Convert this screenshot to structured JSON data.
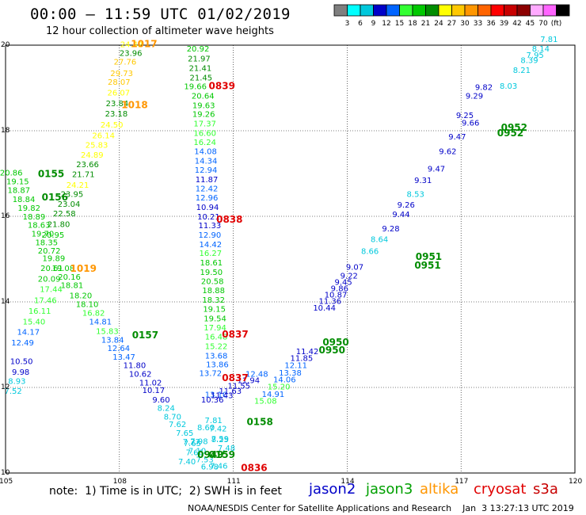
{
  "header": {
    "title": "00:00 – 11:59 UTC 01/02/2019",
    "subtitle": "12 hour collection of altimeter wave heights"
  },
  "legend": {
    "colors": [
      "#7f7f7f",
      "#00ffff",
      "#00c8dc",
      "#0000c8",
      "#0064ff",
      "#32ff32",
      "#00c800",
      "#008c00",
      "#ffff00",
      "#ffc800",
      "#ff9600",
      "#ff6400",
      "#ff0000",
      "#c80000",
      "#8c0000",
      "#ffaaff",
      "#ff64ff",
      "#000000"
    ],
    "labels": [
      "3",
      "6",
      "9",
      "12",
      "15",
      "18",
      "21",
      "24",
      "27",
      "30",
      "33",
      "36",
      "39",
      "42",
      "45",
      "70",
      "(ft)"
    ]
  },
  "map": {
    "lon_range": [
      105,
      120
    ],
    "lat_range": [
      10,
      20
    ],
    "lon_ticks": [
      "105",
      "108",
      "111",
      "114",
      "117",
      "120"
    ],
    "lat_ticks": [
      "10",
      "12",
      "14",
      "16",
      "18",
      "20"
    ]
  },
  "footer": {
    "note": "note:  1) Time is in UTC;  2) SWH is in feet",
    "credit": "NOAA/NESDIS Center for Satellite Applications and Research    Jan  3 13:27:13 UTC 2019",
    "satellites": [
      {
        "name": "jason2",
        "color": "#0000c8"
      },
      {
        "name": "jason3",
        "color": "#00a000"
      },
      {
        "name": "altika",
        "color": "#ff9600"
      },
      {
        "name": "cryosat",
        "color": "#e00000"
      },
      {
        "name": "s3a",
        "color": "#c80000"
      }
    ]
  },
  "tracks": [
    {
      "id": "altika-1017",
      "labels": [
        {
          "t": "24.42",
          "lon": 108.32,
          "lat": 19.95
        },
        {
          "t": "23.96",
          "lon": 108.3,
          "lat": 19.75
        },
        {
          "t": "27.76",
          "lon": 108.15,
          "lat": 19.55
        },
        {
          "t": "29.73",
          "lon": 108.06,
          "lat": 19.28
        },
        {
          "t": "28.07",
          "lon": 107.99,
          "lat": 19.07
        },
        {
          "t": "26.07",
          "lon": 107.98,
          "lat": 18.82
        },
        {
          "t": "23.84",
          "lon": 107.94,
          "lat": 18.57
        },
        {
          "t": "23.18",
          "lon": 107.92,
          "lat": 18.33
        },
        {
          "t": "24.50",
          "lon": 107.8,
          "lat": 18.07
        },
        {
          "t": "26.14",
          "lon": 107.58,
          "lat": 17.82
        },
        {
          "t": "25.83",
          "lon": 107.4,
          "lat": 17.6
        },
        {
          "t": "24.89",
          "lon": 107.28,
          "lat": 17.37
        },
        {
          "t": "23.66",
          "lon": 107.16,
          "lat": 17.15
        },
        {
          "t": "21.71",
          "lon": 107.05,
          "lat": 16.92
        },
        {
          "t": "24.21",
          "lon": 106.9,
          "lat": 16.67
        },
        {
          "t": "23.95",
          "lon": 106.75,
          "lat": 16.45
        },
        {
          "t": "23.04",
          "lon": 106.67,
          "lat": 16.22
        },
        {
          "t": "22.58",
          "lon": 106.55,
          "lat": 16.0
        },
        {
          "t": "21.80",
          "lon": 106.4,
          "lat": 15.75
        },
        {
          "t": "20.95",
          "lon": 106.25,
          "lat": 15.5
        }
      ]
    },
    {
      "id": "jason3-0155",
      "labels": [
        {
          "t": "20.86",
          "lon": 105.15,
          "lat": 16.95
        },
        {
          "t": "19.15",
          "lon": 105.32,
          "lat": 16.75
        },
        {
          "t": "18.87",
          "lon": 105.35,
          "lat": 16.55
        },
        {
          "t": "18.84",
          "lon": 105.48,
          "lat": 16.33
        },
        {
          "t": "19.82",
          "lon": 105.62,
          "lat": 16.13
        },
        {
          "t": "18.89",
          "lon": 105.75,
          "lat": 15.93
        },
        {
          "t": "18.63",
          "lon": 105.88,
          "lat": 15.73
        },
        {
          "t": "19.70",
          "lon": 105.98,
          "lat": 15.53
        },
        {
          "t": "18.35",
          "lon": 106.08,
          "lat": 15.32
        },
        {
          "t": "20.72",
          "lon": 106.15,
          "lat": 15.13
        },
        {
          "t": "19.89",
          "lon": 106.27,
          "lat": 14.95
        },
        {
          "t": "20.61",
          "lon": 106.22,
          "lat": 14.72
        },
        {
          "t": "19.08",
          "lon": 106.52,
          "lat": 14.72
        },
        {
          "t": "20.09",
          "lon": 106.15,
          "lat": 14.47
        },
        {
          "t": "20.16",
          "lon": 106.68,
          "lat": 14.52
        },
        {
          "t": "18.81",
          "lon": 106.75,
          "lat": 14.32
        },
        {
          "t": "17.44",
          "lon": 106.2,
          "lat": 14.23
        },
        {
          "t": "18.20",
          "lon": 106.98,
          "lat": 14.08
        },
        {
          "t": "17.46",
          "lon": 106.05,
          "lat": 13.97
        },
        {
          "t": "18.10",
          "lon": 107.15,
          "lat": 13.88
        },
        {
          "t": "16.11",
          "lon": 105.9,
          "lat": 13.72
        },
        {
          "t": "16.82",
          "lon": 107.32,
          "lat": 13.68
        },
        {
          "t": "15.40",
          "lon": 105.75,
          "lat": 13.47
        },
        {
          "t": "14.81",
          "lon": 107.5,
          "lat": 13.47
        },
        {
          "t": "14.17",
          "lon": 105.6,
          "lat": 13.23
        },
        {
          "t": "15.83",
          "lon": 107.68,
          "lat": 13.25
        },
        {
          "t": "12.49",
          "lon": 105.45,
          "lat": 12.98
        },
        {
          "t": "13.84",
          "lon": 107.82,
          "lat": 13.05
        },
        {
          "t": "12.64",
          "lon": 107.98,
          "lat": 12.85
        },
        {
          "t": "13.47",
          "lon": 108.12,
          "lat": 12.65
        }
      ]
    },
    {
      "id": "jason2-0157",
      "labels": [
        {
          "t": "10.50",
          "lon": 105.42,
          "lat": 12.55
        },
        {
          "t": "9.98",
          "lon": 105.4,
          "lat": 12.3
        },
        {
          "t": "8.93",
          "lon": 105.3,
          "lat": 12.08
        },
        {
          "t": "7.52",
          "lon": 105.2,
          "lat": 11.85
        },
        {
          "t": "11.80",
          "lon": 108.4,
          "lat": 12.45
        },
        {
          "t": "10.62",
          "lon": 108.55,
          "lat": 12.25
        },
        {
          "t": "11.02",
          "lon": 108.82,
          "lat": 12.05
        },
        {
          "t": "10.17",
          "lon": 108.9,
          "lat": 11.87
        },
        {
          "t": "9.60",
          "lon": 109.1,
          "lat": 11.65
        },
        {
          "t": "8.24",
          "lon": 109.23,
          "lat": 11.45
        },
        {
          "t": "8.70",
          "lon": 109.4,
          "lat": 11.25
        },
        {
          "t": "7.62",
          "lon": 109.53,
          "lat": 11.07
        },
        {
          "t": "7.65",
          "lon": 109.72,
          "lat": 10.87
        },
        {
          "t": "7.27",
          "lon": 109.9,
          "lat": 10.67
        },
        {
          "t": "7.10",
          "lon": 110.05,
          "lat": 10.45
        }
      ]
    },
    {
      "id": "jason3-0839",
      "labels": [
        {
          "t": "20.92",
          "lon": 110.07,
          "lat": 19.85
        },
        {
          "t": "21.97",
          "lon": 110.1,
          "lat": 19.62
        },
        {
          "t": "21.41",
          "lon": 110.13,
          "lat": 19.4
        },
        {
          "t": "21.45",
          "lon": 110.15,
          "lat": 19.18
        },
        {
          "t": "19.66",
          "lon": 110.0,
          "lat": 18.97
        },
        {
          "t": "20.64",
          "lon": 110.2,
          "lat": 18.75
        },
        {
          "t": "19.63",
          "lon": 110.22,
          "lat": 18.53
        },
        {
          "t": "19.26",
          "lon": 110.22,
          "lat": 18.32
        },
        {
          "t": "17.37",
          "lon": 110.25,
          "lat": 18.1
        },
        {
          "t": "16.60",
          "lon": 110.25,
          "lat": 17.88
        },
        {
          "t": "16.24",
          "lon": 110.25,
          "lat": 17.67
        },
        {
          "t": "14.08",
          "lon": 110.27,
          "lat": 17.45
        },
        {
          "t": "14.34",
          "lon": 110.28,
          "lat": 17.23
        },
        {
          "t": "12.94",
          "lon": 110.28,
          "lat": 17.02
        },
        {
          "t": "11.87",
          "lon": 110.3,
          "lat": 16.8
        },
        {
          "t": "12.42",
          "lon": 110.3,
          "lat": 16.58
        },
        {
          "t": "12.96",
          "lon": 110.3,
          "lat": 16.37
        },
        {
          "t": "10.94",
          "lon": 110.32,
          "lat": 16.15
        },
        {
          "t": "10.21",
          "lon": 110.35,
          "lat": 15.93
        },
        {
          "t": "11.33",
          "lon": 110.38,
          "lat": 15.72
        },
        {
          "t": "12.90",
          "lon": 110.38,
          "lat": 15.5
        },
        {
          "t": "14.42",
          "lon": 110.4,
          "lat": 15.28
        },
        {
          "t": "16.27",
          "lon": 110.4,
          "lat": 15.07
        },
        {
          "t": "18.61",
          "lon": 110.42,
          "lat": 14.85
        },
        {
          "t": "19.50",
          "lon": 110.42,
          "lat": 14.63
        },
        {
          "t": "20.58",
          "lon": 110.45,
          "lat": 14.42
        },
        {
          "t": "18.88",
          "lon": 110.48,
          "lat": 14.2
        },
        {
          "t": "18.32",
          "lon": 110.48,
          "lat": 13.98
        },
        {
          "t": "19.15",
          "lon": 110.5,
          "lat": 13.77
        },
        {
          "t": "19.54",
          "lon": 110.52,
          "lat": 13.55
        },
        {
          "t": "17.94",
          "lon": 110.52,
          "lat": 13.33
        },
        {
          "t": "16.48",
          "lon": 110.55,
          "lat": 13.12
        },
        {
          "t": "15.22",
          "lon": 110.55,
          "lat": 12.9
        },
        {
          "t": "13.68",
          "lon": 110.55,
          "lat": 12.68
        },
        {
          "t": "13.86",
          "lon": 110.58,
          "lat": 12.47
        },
        {
          "t": "13.72",
          "lon": 110.4,
          "lat": 12.27
        },
        {
          "t": "13.10",
          "lon": 110.55,
          "lat": 11.77
        },
        {
          "t": "7.81",
          "lon": 110.48,
          "lat": 11.17
        },
        {
          "t": "7.42",
          "lon": 110.6,
          "lat": 10.97
        },
        {
          "t": "7.59",
          "lon": 110.65,
          "lat": 10.73
        },
        {
          "t": "7.48",
          "lon": 110.82,
          "lat": 10.52
        },
        {
          "t": "8.60",
          "lon": 110.28,
          "lat": 11.0
        }
      ]
    },
    {
      "id": "jason3-0950",
      "labels": [
        {
          "t": "14.91",
          "lon": 112.05,
          "lat": 11.78
        },
        {
          "t": "15.20",
          "lon": 112.2,
          "lat": 11.95
        },
        {
          "t": "15.08",
          "lon": 111.85,
          "lat": 11.62
        },
        {
          "t": "14.06",
          "lon": 112.35,
          "lat": 12.12
        },
        {
          "t": "13.38",
          "lon": 112.5,
          "lat": 12.28
        },
        {
          "t": "12.11",
          "lon": 112.65,
          "lat": 12.45
        },
        {
          "t": "11.85",
          "lon": 112.8,
          "lat": 12.62
        },
        {
          "t": "11.42",
          "lon": 112.95,
          "lat": 12.78
        }
      ]
    },
    {
      "id": "jason2-0158",
      "labels": [
        {
          "t": "10.36",
          "lon": 110.45,
          "lat": 11.65
        },
        {
          "t": "11.43",
          "lon": 110.7,
          "lat": 11.75
        },
        {
          "t": "11.63",
          "lon": 110.92,
          "lat": 11.85
        },
        {
          "t": "11.55",
          "lon": 111.15,
          "lat": 11.97
        },
        {
          "t": "11.94",
          "lon": 111.4,
          "lat": 12.1
        },
        {
          "t": "12.48",
          "lon": 111.62,
          "lat": 12.25
        },
        {
          "t": "11.36",
          "lon": 113.55,
          "lat": 13.95
        },
        {
          "t": "10.87",
          "lon": 113.7,
          "lat": 14.1
        },
        {
          "t": "10.44",
          "lon": 113.4,
          "lat": 13.8
        }
      ]
    },
    {
      "id": "jason2-0952",
      "labels": [
        {
          "t": "9.86",
          "lon": 113.8,
          "lat": 14.25
        },
        {
          "t": "9.22",
          "lon": 114.05,
          "lat": 14.55
        },
        {
          "t": "9.45",
          "lon": 113.9,
          "lat": 14.4
        },
        {
          "t": "9.28",
          "lon": 115.15,
          "lat": 15.65
        },
        {
          "t": "9.44",
          "lon": 115.42,
          "lat": 15.98
        },
        {
          "t": "9.26",
          "lon": 115.55,
          "lat": 16.2
        },
        {
          "t": "9.31",
          "lon": 116.0,
          "lat": 16.78
        },
        {
          "t": "9.47",
          "lon": 116.35,
          "lat": 17.05
        },
        {
          "t": "9.62",
          "lon": 116.65,
          "lat": 17.45
        },
        {
          "t": "9.47",
          "lon": 116.9,
          "lat": 17.8
        },
        {
          "t": "9.66",
          "lon": 117.25,
          "lat": 18.12
        },
        {
          "t": "9.29",
          "lon": 117.35,
          "lat": 18.75
        },
        {
          "t": "9.82",
          "lon": 117.6,
          "lat": 18.95
        },
        {
          "t": "9.25",
          "lon": 117.1,
          "lat": 18.3
        }
      ]
    },
    {
      "id": "cyan-tracks",
      "labels": [
        {
          "t": "7.81",
          "lon": 119.32,
          "lat": 20.07
        },
        {
          "t": "7.95",
          "lon": 118.95,
          "lat": 19.7
        },
        {
          "t": "8.21",
          "lon": 118.6,
          "lat": 19.35
        },
        {
          "t": "8.03",
          "lon": 118.25,
          "lat": 18.98
        },
        {
          "t": "8.53",
          "lon": 115.8,
          "lat": 16.45
        },
        {
          "t": "8.66",
          "lon": 114.6,
          "lat": 15.12
        },
        {
          "t": "9.07",
          "lon": 114.2,
          "lat": 14.75
        },
        {
          "t": "8.64",
          "lon": 114.85,
          "lat": 15.4
        },
        {
          "t": "8.39",
          "lon": 118.8,
          "lat": 19.58
        },
        {
          "t": "8.14",
          "lon": 119.1,
          "lat": 19.85
        },
        {
          "t": "7.65",
          "lon": 109.92,
          "lat": 10.63
        },
        {
          "t": "7.40",
          "lon": 109.78,
          "lat": 10.2
        },
        {
          "t": "7.66",
          "lon": 109.98,
          "lat": 10.42
        },
        {
          "t": "7.53",
          "lon": 110.25,
          "lat": 10.25
        },
        {
          "t": "7.98",
          "lon": 110.1,
          "lat": 10.68
        },
        {
          "t": "6.98",
          "lon": 110.38,
          "lat": 10.08
        },
        {
          "t": "7.46",
          "lon": 110.62,
          "lat": 10.1
        }
      ]
    },
    {
      "id": "jason3-0156",
      "labels": [
        {
          "t": "8.25",
          "lon": 110.65,
          "lat": 10.72
        }
      ]
    }
  ],
  "passes": [
    {
      "t": "1017",
      "lon": 108.65,
      "lat": 19.95,
      "color": "#ff9600"
    },
    {
      "t": "1018",
      "lon": 108.4,
      "lat": 18.53,
      "color": "#ff9600"
    },
    {
      "t": "1019",
      "lon": 107.05,
      "lat": 14.7,
      "color": "#ff9600"
    },
    {
      "t": "0839",
      "lon": 110.7,
      "lat": 18.97,
      "color": "#e00000"
    },
    {
      "t": "0838",
      "lon": 110.9,
      "lat": 15.85,
      "color": "#e00000"
    },
    {
      "t": "0837",
      "lon": 111.05,
      "lat": 13.17,
      "color": "#e00000"
    },
    {
      "t": "0837",
      "lon": 111.05,
      "lat": 12.15,
      "color": "#e00000"
    },
    {
      "t": "0836",
      "lon": 111.55,
      "lat": 10.05,
      "color": "#e00000"
    },
    {
      "t": "0155",
      "lon": 106.2,
      "lat": 16.92,
      "color": "#008c00"
    },
    {
      "t": "0156",
      "lon": 106.3,
      "lat": 16.37,
      "color": "#008c00"
    },
    {
      "t": "0157",
      "lon": 108.68,
      "lat": 13.15,
      "color": "#008c00"
    },
    {
      "t": "0158",
      "lon": 111.7,
      "lat": 11.12,
      "color": "#008c00"
    },
    {
      "t": "0950",
      "lon": 113.7,
      "lat": 12.98,
      "color": "#008c00"
    },
    {
      "t": "0950",
      "lon": 113.6,
      "lat": 12.8,
      "color": "#008c00"
    },
    {
      "t": "0951",
      "lon": 116.15,
      "lat": 14.98,
      "color": "#008c00"
    },
    {
      "t": "0951",
      "lon": 116.12,
      "lat": 14.78,
      "color": "#008c00"
    },
    {
      "t": "0952",
      "lon": 118.4,
      "lat": 18.0,
      "color": "#008c00"
    },
    {
      "t": "0952",
      "lon": 118.3,
      "lat": 17.87,
      "color": "#008c00"
    },
    {
      "t": "0159",
      "lon": 110.7,
      "lat": 10.35,
      "color": "#008c00"
    },
    {
      "t": "0949",
      "lon": 110.4,
      "lat": 10.35,
      "color": "#008c00"
    }
  ]
}
